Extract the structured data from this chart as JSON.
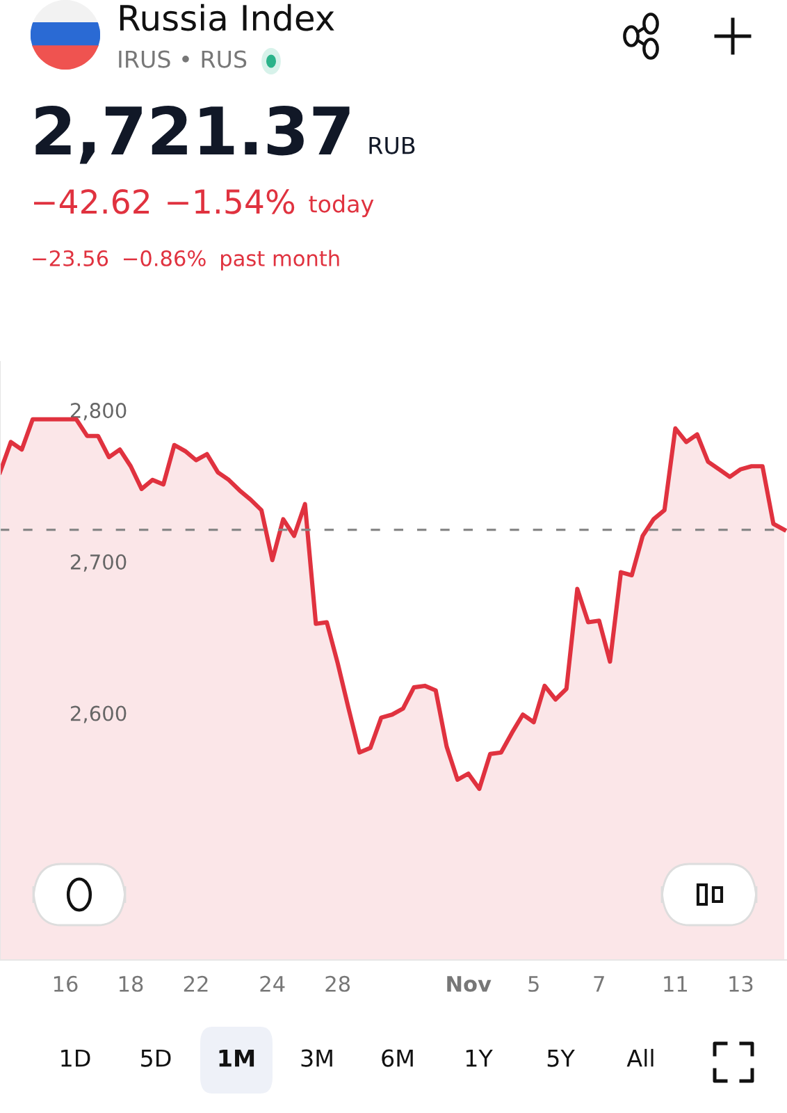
{
  "chart_data": {
    "type": "area",
    "title": "Russia Index",
    "subtitle": "IRUS • RUS",
    "annotations": [
      "2,721.37",
      "RUB",
      "−42.62",
      "−1.54%",
      "today",
      "−23.56",
      "−0.86%",
      "past month",
      "1D",
      "5D",
      "1M",
      "3M",
      "6M",
      "1Y",
      "5Y",
      "All"
    ],
    "series": [
      {
        "color": "#e0323f",
        "values": [
          2759,
          2779,
          2774,
          2794,
          2794,
          2794,
          2794,
          2794,
          2783,
          2783,
          2769,
          2774,
          2763,
          2748,
          2754,
          2751,
          2777,
          2773,
          2767,
          2771,
          2759,
          2754,
          2747,
          2741,
          2734,
          2701,
          2728,
          2717,
          2738,
          2659,
          2660,
          2633,
          2603,
          2574,
          2577,
          2597,
          2599,
          2603,
          2617,
          2618,
          2615,
          2578,
          2556,
          2560,
          2550,
          2573,
          2574,
          2587,
          2599,
          2594,
          2618,
          2609,
          2616,
          2682,
          2660,
          2661,
          2634,
          2693,
          2691,
          2717,
          2728,
          2734,
          2788,
          2779,
          2784,
          2766,
          2761,
          2756,
          2761,
          2763,
          2763,
          2725,
          2721
        ]
      }
    ],
    "categories": [
      null,
      null,
      null,
      null,
      null,
      null,
      "16",
      null,
      null,
      null,
      null,
      null,
      "18",
      null,
      null,
      null,
      null,
      null,
      "22",
      null,
      null,
      null,
      null,
      null,
      null,
      "24",
      null,
      null,
      null,
      null,
      null,
      "28",
      null,
      null,
      null,
      null,
      null,
      null,
      null,
      null,
      null,
      null,
      null,
      "Nov",
      null,
      null,
      null,
      null,
      null,
      "5",
      null,
      null,
      null,
      null,
      null,
      "7",
      null,
      null,
      null,
      null,
      null,
      null,
      "11",
      null,
      null,
      null,
      null,
      null,
      "13",
      null,
      null,
      null,
      null
    ],
    "ylim": [
      2437,
      2832
    ],
    "yticks": [
      {
        "value": 2600,
        "label": "2,600"
      },
      {
        "value": 2700,
        "label": "2,700"
      },
      {
        "value": 2800,
        "label": "2,800"
      }
    ],
    "ref_lines": [
      {
        "axis": "y",
        "value": 2721,
        "color": "#888888",
        "line_style": "dashed"
      }
    ],
    "grid": false,
    "legend": false
  }
}
